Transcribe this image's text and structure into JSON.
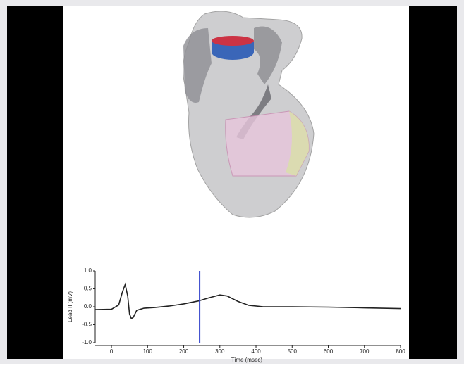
{
  "chart_data": {
    "type": "line",
    "x": [
      -45,
      0,
      20,
      30,
      38,
      45,
      50,
      55,
      60,
      70,
      90,
      120,
      160,
      200,
      240,
      270,
      300,
      320,
      350,
      380,
      420,
      500,
      600,
      700,
      800
    ],
    "values": [
      -0.08,
      -0.07,
      0.05,
      0.4,
      0.62,
      0.3,
      -0.2,
      -0.33,
      -0.3,
      -0.1,
      -0.04,
      -0.02,
      0.02,
      0.08,
      0.16,
      0.25,
      0.33,
      0.3,
      0.15,
      0.04,
      0,
      0,
      -0.01,
      -0.03,
      -0.05
    ],
    "color": "#222222",
    "marker_x": 244,
    "marker_color": "#3344cc",
    "xlabel": "Time (msec)",
    "ylabel": "Lead II (mV)",
    "xlim": [
      -45,
      800
    ],
    "ylim": [
      -1,
      1
    ],
    "xticks": [
      0,
      100,
      200,
      300,
      400,
      500,
      600,
      700,
      800
    ],
    "yticks": [
      {
        "value": 1,
        "label": "1.0"
      },
      0.5,
      {
        "value": 0,
        "label": "0.0"
      },
      -0.5,
      {
        "value": -1,
        "label": "-1.0"
      }
    ]
  }
}
